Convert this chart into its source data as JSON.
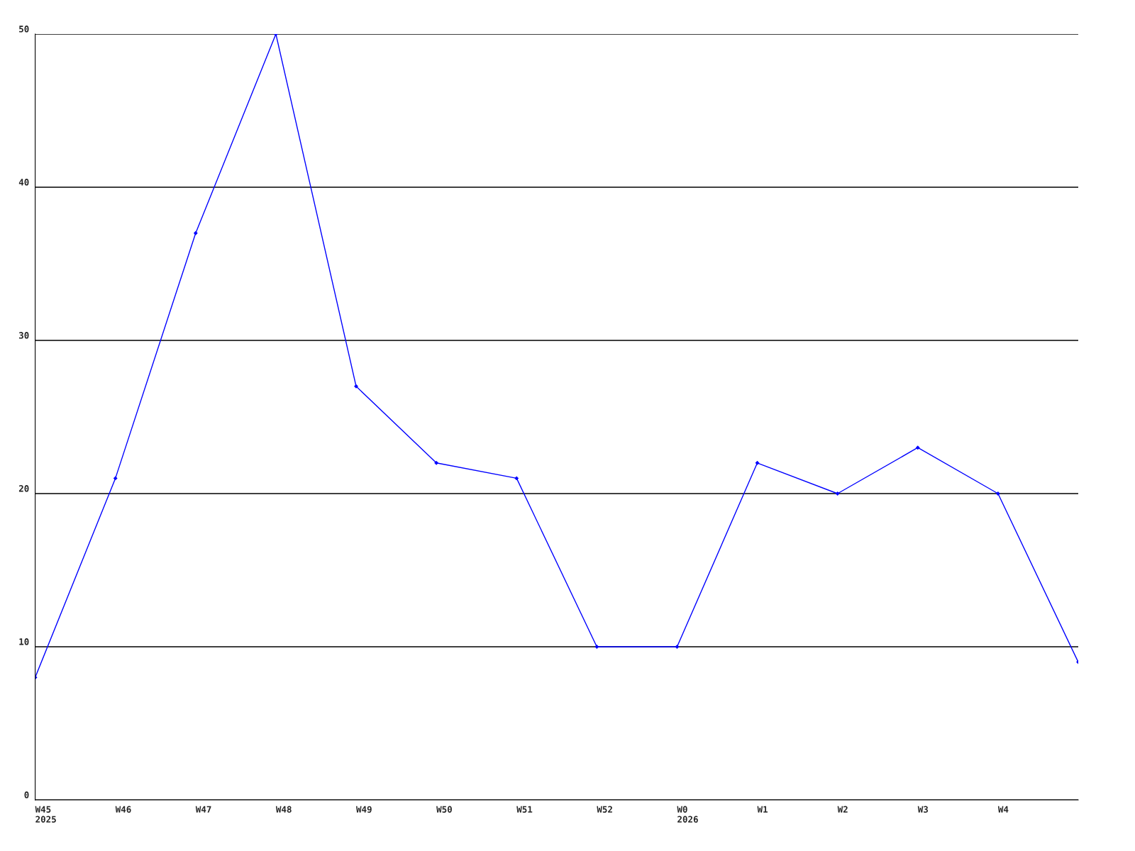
{
  "chart_data": {
    "type": "line",
    "categories": [
      "W45\n2025",
      "W46",
      "W47",
      "W48",
      "W49",
      "W50",
      "W51",
      "W52",
      "W0\n2026",
      "W1",
      "W2",
      "W3",
      "W4",
      null
    ],
    "series": [
      {
        "color": "#0000ff",
        "values": [
          8,
          21,
          37,
          50,
          27,
          22,
          21,
          10,
          10,
          22,
          20,
          23,
          20,
          9
        ]
      }
    ],
    "ylim": [
      0,
      50
    ],
    "yticks": [
      0,
      10,
      20,
      30,
      40,
      50
    ],
    "grid": "y",
    "marker": "diamond",
    "line_style": "solid"
  }
}
